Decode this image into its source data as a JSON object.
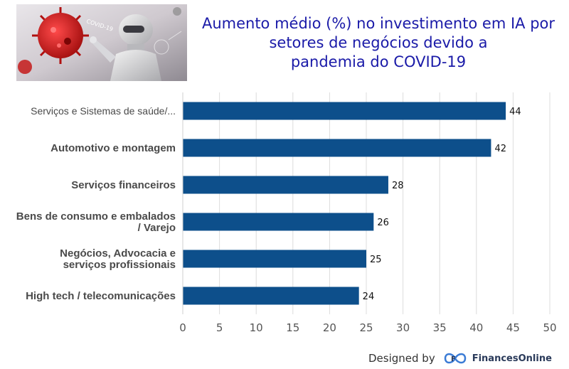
{
  "title_lines": [
    "Aumento médio (%) no investimento em IA por",
    "setores de negócios devido a",
    "pandemia do COVID-19"
  ],
  "footer": {
    "designed_by": "Designed by",
    "brand": "FinancesOnline"
  },
  "hero_image": {
    "caption": "COVID-19"
  },
  "colors": {
    "bar": "#0d4f8b",
    "title": "#1a1aa8",
    "grid": "#dcdcdc"
  },
  "chart_data": {
    "type": "bar",
    "orientation": "horizontal",
    "categories": [
      [
        "Serviços e Sistemas de saúde/..."
      ],
      [
        "Automotivo e montagem"
      ],
      [
        "Serviços financeiros"
      ],
      [
        "Bens de consumo e embalados",
        "/ Varejo"
      ],
      [
        "Negócios, Advocacia e",
        "serviços profissionais"
      ],
      [
        "High tech / telecomunicações"
      ]
    ],
    "values": [
      44,
      42,
      28,
      26,
      25,
      24
    ],
    "xlim": [
      0,
      50
    ],
    "xticks": [
      0,
      5,
      10,
      15,
      20,
      25,
      30,
      35,
      40,
      45,
      50
    ],
    "grid": true
  }
}
